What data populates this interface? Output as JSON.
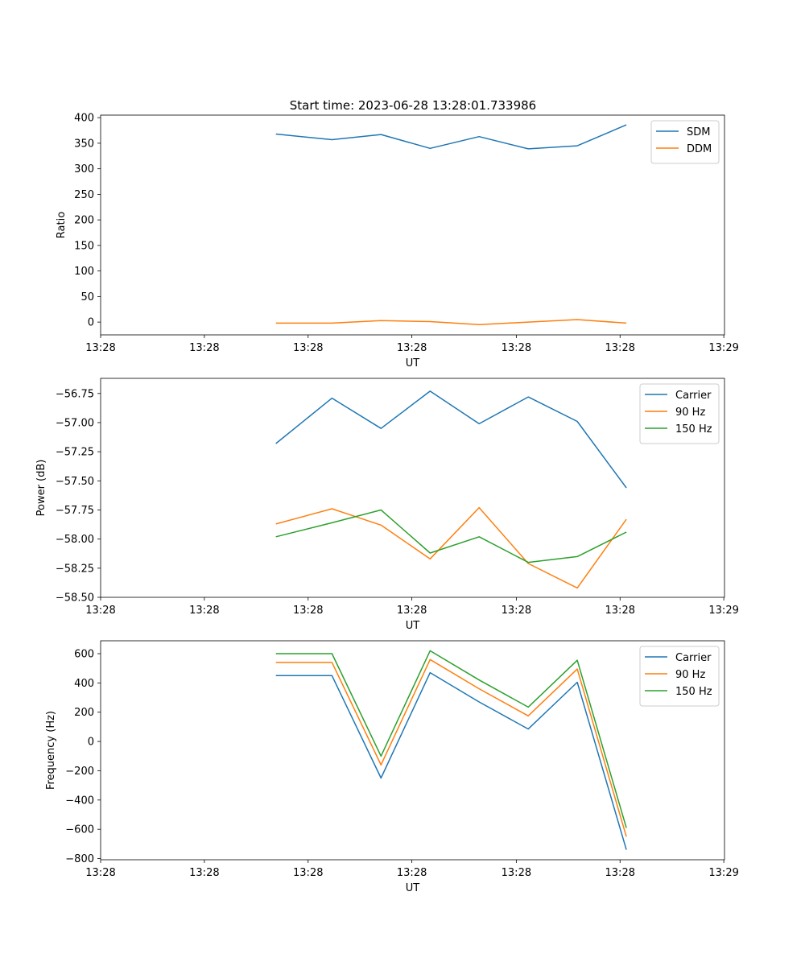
{
  "figure": {
    "title": "Start time: 2023-06-28 13:28:01.733986"
  },
  "chart_data": [
    {
      "type": "line",
      "xlabel": "UT",
      "ylabel": "Ratio",
      "x": [
        0.25,
        0.33,
        0.4,
        0.47,
        0.54,
        0.61,
        0.68,
        0.75
      ],
      "xlim": [
        0.0,
        0.89
      ],
      "x_ticks": [
        0.0,
        0.148,
        0.296,
        0.444,
        0.593,
        0.741,
        0.889
      ],
      "x_tick_labels": [
        "13:28",
        "13:28",
        "13:28",
        "13:28",
        "13:28",
        "13:28",
        "13:29"
      ],
      "ylim": [
        -25,
        405
      ],
      "y_ticks": [
        0,
        50,
        100,
        150,
        200,
        250,
        300,
        350,
        400
      ],
      "legend": "top-right",
      "series": [
        {
          "name": "SDM",
          "color": "#1f77b4",
          "values": [
            368,
            357,
            367,
            340,
            363,
            339,
            345,
            386
          ]
        },
        {
          "name": "DDM",
          "color": "#ff7f0e",
          "values": [
            -2,
            -2,
            3,
            1,
            -5,
            0,
            5,
            -2
          ]
        }
      ]
    },
    {
      "type": "line",
      "xlabel": "UT",
      "ylabel": "Power (dB)",
      "x": [
        0.25,
        0.33,
        0.4,
        0.47,
        0.54,
        0.61,
        0.68,
        0.75
      ],
      "xlim": [
        0.0,
        0.89
      ],
      "x_ticks": [
        0.0,
        0.148,
        0.296,
        0.444,
        0.593,
        0.741,
        0.889
      ],
      "x_tick_labels": [
        "13:28",
        "13:28",
        "13:28",
        "13:28",
        "13:28",
        "13:28",
        "13:29"
      ],
      "ylim": [
        -58.5,
        -56.62
      ],
      "y_ticks": [
        -58.5,
        -58.25,
        -58.0,
        -57.75,
        -57.5,
        -57.25,
        -57.0,
        -56.75
      ],
      "y_tick_labels": [
        "−58.50",
        "−58.25",
        "−58.00",
        "−57.75",
        "−57.50",
        "−57.25",
        "−57.00",
        "−56.75"
      ],
      "legend": "top-right",
      "series": [
        {
          "name": "Carrier",
          "color": "#1f77b4",
          "values": [
            -57.18,
            -56.79,
            -57.05,
            -56.73,
            -57.01,
            -56.78,
            -56.99,
            -57.56
          ]
        },
        {
          "name": "90 Hz",
          "color": "#ff7f0e",
          "values": [
            -57.87,
            -57.74,
            -57.88,
            -58.17,
            -57.73,
            -58.21,
            -58.42,
            -57.83
          ]
        },
        {
          "name": "150 Hz",
          "color": "#2ca02c",
          "values": [
            -57.98,
            -57.86,
            -57.75,
            -58.12,
            -57.98,
            -58.2,
            -58.15,
            -57.94
          ]
        }
      ]
    },
    {
      "type": "line",
      "xlabel": "UT",
      "ylabel": "Frequency (Hz)",
      "x": [
        0.25,
        0.33,
        0.4,
        0.47,
        0.54,
        0.61,
        0.68,
        0.75
      ],
      "xlim": [
        0.0,
        0.89
      ],
      "x_ticks": [
        0.0,
        0.148,
        0.296,
        0.444,
        0.593,
        0.741,
        0.889
      ],
      "x_tick_labels": [
        "13:28",
        "13:28",
        "13:28",
        "13:28",
        "13:28",
        "13:28",
        "13:29"
      ],
      "ylim": [
        -808,
        688
      ],
      "y_ticks": [
        -800,
        -600,
        -400,
        -200,
        0,
        200,
        400,
        600
      ],
      "y_tick_labels": [
        "−800",
        "−600",
        "−400",
        "−200",
        "0",
        "200",
        "400",
        "600"
      ],
      "legend": "top-right",
      "series": [
        {
          "name": "Carrier",
          "color": "#1f77b4",
          "values": [
            450,
            450,
            -250,
            470,
            270,
            85,
            405,
            -740
          ]
        },
        {
          "name": "90 Hz",
          "color": "#ff7f0e",
          "values": [
            540,
            540,
            -160,
            560,
            360,
            175,
            495,
            -650
          ]
        },
        {
          "name": "150 Hz",
          "color": "#2ca02c",
          "values": [
            600,
            600,
            -100,
            620,
            420,
            235,
            555,
            -590
          ]
        }
      ]
    }
  ]
}
